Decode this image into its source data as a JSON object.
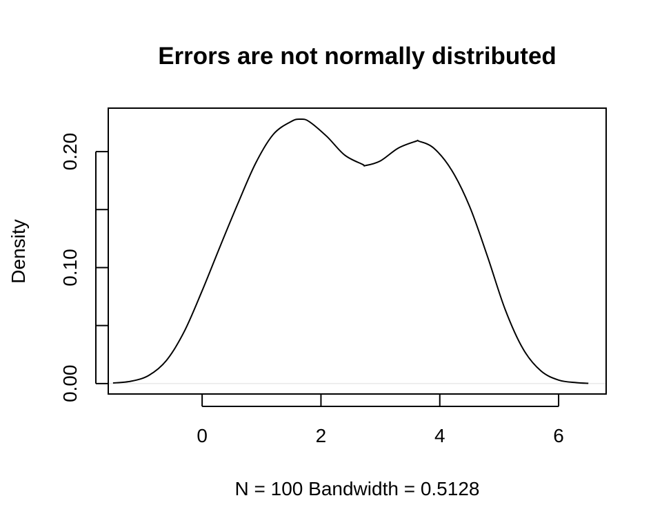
{
  "chart_data": {
    "type": "line",
    "title": "Errors are not normally distributed",
    "xlabel": "N = 100   Bandwidth = 0.5128",
    "ylabel": "Density",
    "xlim": [
      -1.58,
      6.8
    ],
    "ylim": [
      -0.009,
      0.2375
    ],
    "x_ticks": [
      0,
      2,
      4,
      6
    ],
    "x_tick_labels": [
      "0",
      "2",
      "4",
      "6"
    ],
    "y_ticks": [
      0,
      0.05,
      0.1,
      0.15,
      0.2
    ],
    "y_tick_labels": [
      "0.00",
      "",
      "0.10",
      "",
      "0.20"
    ],
    "grid": false,
    "series": [
      {
        "color": "#000000",
        "x": [
          -1.5,
          -1.2,
          -0.9,
          -0.6,
          -0.3,
          0.0,
          0.3,
          0.6,
          0.9,
          1.2,
          1.5,
          1.65,
          1.8,
          2.1,
          2.4,
          2.7,
          2.75,
          3.0,
          3.3,
          3.6,
          3.65,
          3.9,
          4.2,
          4.5,
          4.8,
          5.1,
          5.4,
          5.7,
          6.0,
          6.3,
          6.5
        ],
        "y": [
          0.0005,
          0.002,
          0.007,
          0.02,
          0.045,
          0.08,
          0.118,
          0.155,
          0.19,
          0.215,
          0.226,
          0.228,
          0.226,
          0.213,
          0.197,
          0.189,
          0.188,
          0.192,
          0.203,
          0.209,
          0.209,
          0.203,
          0.184,
          0.153,
          0.11,
          0.064,
          0.03,
          0.011,
          0.003,
          0.0008,
          0.0002
        ]
      }
    ],
    "baseline": {
      "y": 0,
      "color": "#dddddd"
    }
  }
}
